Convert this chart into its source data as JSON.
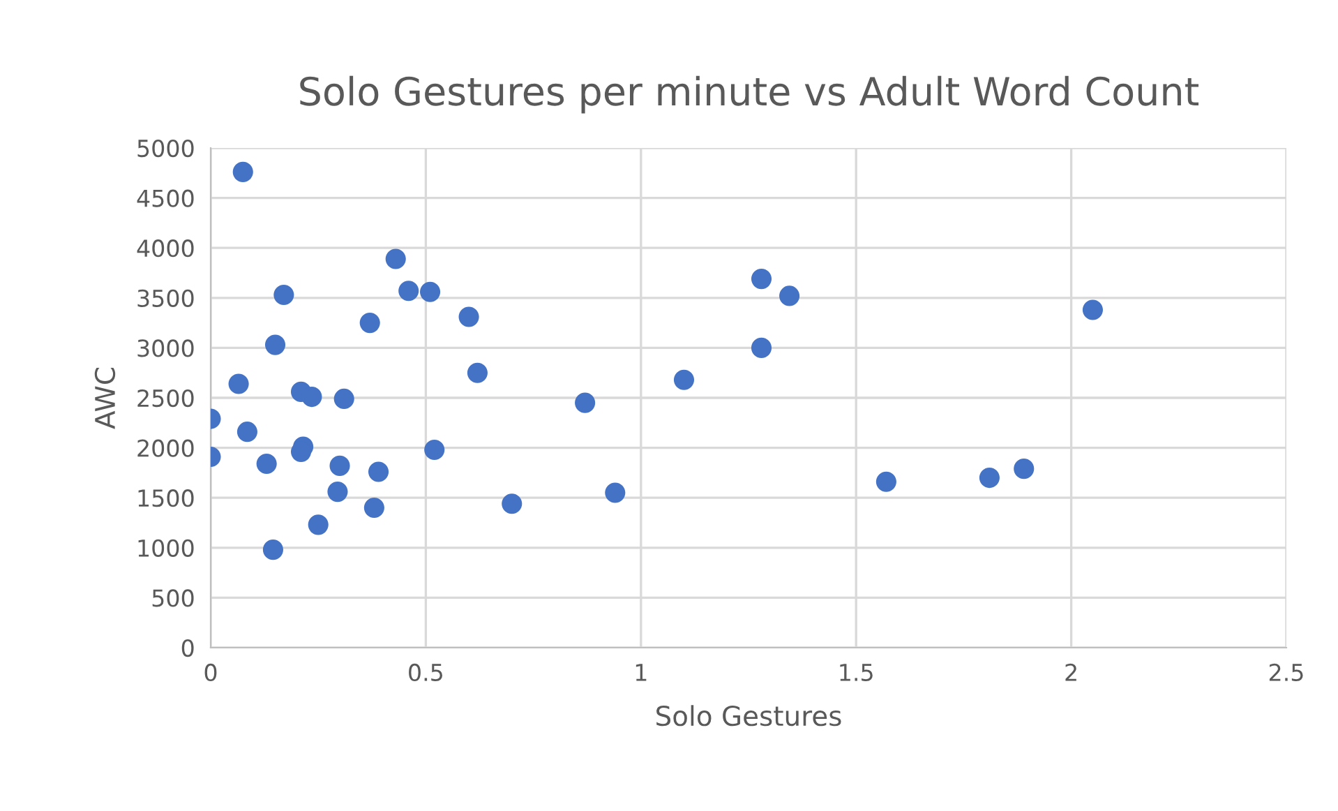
{
  "chart_data": {
    "type": "scatter",
    "title": "Solo Gestures per minute vs Adult Word Count",
    "xlabel": "Solo Gestures",
    "ylabel": "AWC",
    "xlim": [
      0,
      2.5
    ],
    "xticks": [
      0,
      0.5,
      1,
      1.5,
      2,
      2.5
    ],
    "ylim": [
      0,
      5000
    ],
    "yticks": [
      0,
      500,
      1000,
      1500,
      2000,
      2500,
      3000,
      3500,
      4000,
      4500,
      5000
    ],
    "grid": true,
    "marker": "circle",
    "series": [
      {
        "color": "#4472c4",
        "x": [
          0.075,
          0.43,
          0.46,
          0.51,
          0.6,
          0.17,
          0.37,
          0.15,
          0.62,
          0.065,
          0.21,
          0.235,
          0.31,
          0,
          0.085,
          0,
          0.215,
          0.21,
          0.13,
          0.3,
          0.39,
          0.52,
          0.295,
          0.38,
          0.7,
          0.25,
          0.145,
          0.87,
          0.94,
          1.1,
          1.28,
          1.28,
          1.345,
          1.57,
          1.81,
          1.89,
          2.05
        ],
        "values": [
          4760,
          3890,
          3570,
          3560,
          3310,
          3530,
          3250,
          3030,
          2750,
          2640,
          2560,
          2510,
          2490,
          2290,
          2160,
          1910,
          2010,
          1960,
          1840,
          1820,
          1760,
          1980,
          1560,
          1400,
          1440,
          1230,
          980,
          2450,
          1550,
          2680,
          3690,
          3000,
          3520,
          1660,
          1700,
          1790,
          3380
        ]
      }
    ]
  }
}
